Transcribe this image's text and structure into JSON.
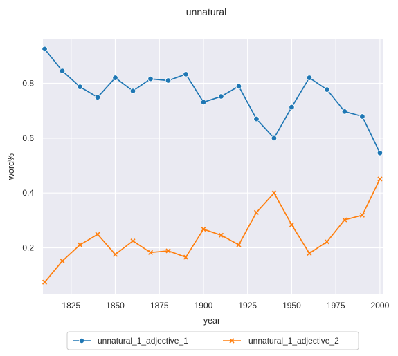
{
  "chart_data": {
    "type": "line",
    "title": "unnatural",
    "xlabel": "year",
    "ylabel": "word%",
    "xlim": [
      1809,
      2002
    ],
    "ylim": [
      0.03,
      0.96
    ],
    "xticks": [
      1825,
      1850,
      1875,
      1900,
      1925,
      1950,
      1975,
      2000
    ],
    "xtick_labels": [
      "1825",
      "1850",
      "1875",
      "1900",
      "1925",
      "1950",
      "1975",
      "2000"
    ],
    "yticks": [
      0.2,
      0.4,
      0.6,
      0.8
    ],
    "ytick_labels": [
      "0.2",
      "0.4",
      "0.6",
      "0.8"
    ],
    "grid": true,
    "legend_position": "bottom-center",
    "x": [
      1810,
      1820,
      1830,
      1840,
      1850,
      1860,
      1870,
      1880,
      1890,
      1900,
      1910,
      1920,
      1930,
      1940,
      1950,
      1960,
      1970,
      1980,
      1990,
      2000
    ],
    "series": [
      {
        "name": "unnatural_1_adjective_1",
        "color": "#1f77b4",
        "marker": "circle",
        "values": [
          0.925,
          0.845,
          0.787,
          0.749,
          0.82,
          0.772,
          0.816,
          0.81,
          0.833,
          0.731,
          0.752,
          0.789,
          0.67,
          0.6,
          0.713,
          0.82,
          0.777,
          0.697,
          0.679,
          0.546
        ]
      },
      {
        "name": "unnatural_1_adjective_2",
        "color": "#ff7f0e",
        "marker": "x",
        "values": [
          0.075,
          0.152,
          0.211,
          0.249,
          0.176,
          0.225,
          0.183,
          0.189,
          0.166,
          0.268,
          0.246,
          0.211,
          0.329,
          0.4,
          0.284,
          0.18,
          0.222,
          0.302,
          0.319,
          0.451
        ]
      }
    ]
  }
}
